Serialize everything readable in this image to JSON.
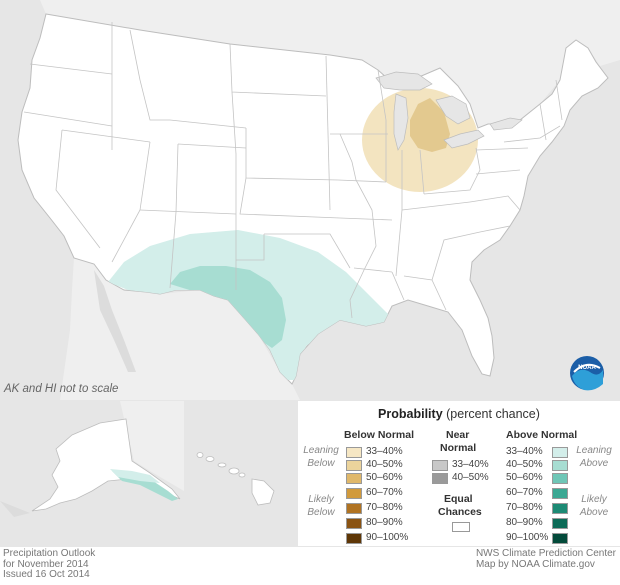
{
  "map": {
    "scale_note": "AK and HI not to scale",
    "colors": {
      "ocean": "#e6e6e6",
      "land": "#ffffff",
      "below_33_40": "#f3e4c0",
      "below_40_50": "#e3c98f",
      "above_33_40": "#d3eeea",
      "above_40_50": "#a7ddd2",
      "state_border": "#bfbfbf"
    },
    "features": {
      "below_normal_region": "Great Lakes / Michigan",
      "above_normal_region": "Southern Plains / Texas / Gulf Coast"
    },
    "logo_icon": "noaa-logo-icon"
  },
  "legend": {
    "title_bold": "Probability",
    "title_rest": "(percent chance)",
    "below_header": "Below Normal",
    "near_header_1": "Near",
    "near_header_2": "Normal",
    "above_header": "Above Normal",
    "leaning_below": [
      "Leaning",
      "Below"
    ],
    "likely_below": [
      "Likely",
      "Below"
    ],
    "leaning_above": [
      "Leaning",
      "Above"
    ],
    "likely_above": [
      "Likely",
      "Above"
    ],
    "below_rows": [
      {
        "label": "33–40%",
        "color": "#f6e7c4"
      },
      {
        "label": "40–50%",
        "color": "#ecd49c"
      },
      {
        "label": "50–60%",
        "color": "#e0b86a"
      },
      {
        "label": "60–70%",
        "color": "#d19a3c"
      },
      {
        "label": "70–80%",
        "color": "#b07322"
      },
      {
        "label": "80–90%",
        "color": "#8a5312"
      },
      {
        "label": "90–100%",
        "color": "#5e3606"
      }
    ],
    "near_rows": [
      {
        "label": "33–40%",
        "color": "#c8c8c8"
      },
      {
        "label": "40–50%",
        "color": "#9a9a9a"
      }
    ],
    "above_rows": [
      {
        "label": "33–40%",
        "color": "#d3eeea"
      },
      {
        "label": "40–50%",
        "color": "#a7ddd2"
      },
      {
        "label": "50–60%",
        "color": "#6ec6b6"
      },
      {
        "label": "60–70%",
        "color": "#3ba893"
      },
      {
        "label": "70–80%",
        "color": "#1c8a74"
      },
      {
        "label": "80–90%",
        "color": "#0d6b57"
      },
      {
        "label": "90–100%",
        "color": "#034a3a"
      }
    ],
    "equal_1": "Equal",
    "equal_2": "Chances"
  },
  "footer": {
    "left_line1": "Precipitation Outlook",
    "left_line2": "for November 2014",
    "left_line3": "Issued 16 Oct 2014",
    "right_line1": "NWS Climate Prediction Center",
    "right_line2": "Map by NOAA Climate.gov"
  }
}
